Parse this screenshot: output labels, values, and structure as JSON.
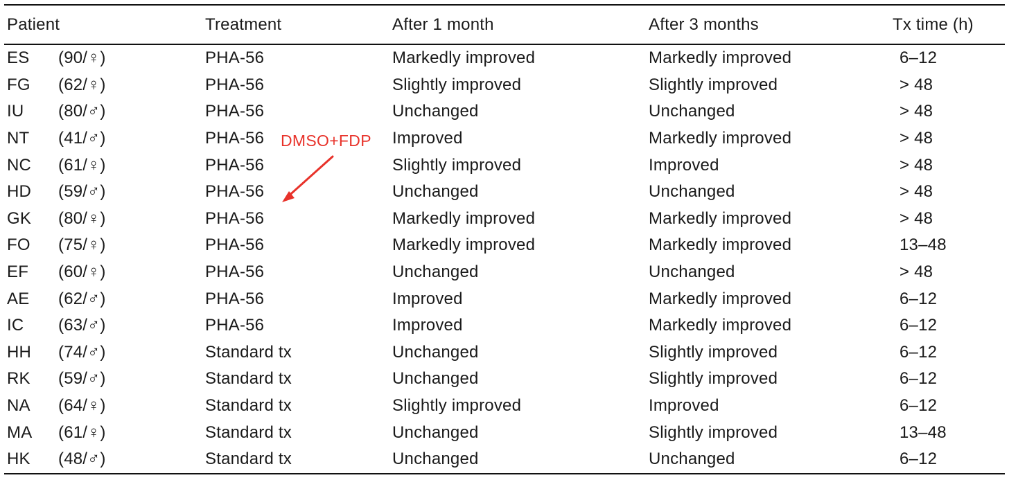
{
  "table": {
    "headers": {
      "patient": "Patient",
      "treatment": "Treatment",
      "after_1_month": "After 1 month",
      "after_3_months": "After 3 months",
      "tx_time": "Tx time (h)"
    },
    "rows": [
      {
        "id": "ES",
        "info": "(90/♀)",
        "treatment": "PHA-56",
        "m1": "Markedly improved",
        "m3": "Markedly improved",
        "tx": "6–12"
      },
      {
        "id": "FG",
        "info": "(62/♀)",
        "treatment": "PHA-56",
        "m1": "Slightly improved",
        "m3": "Slightly improved",
        "tx": "> 48"
      },
      {
        "id": "IU",
        "info": "(80/♂)",
        "treatment": "PHA-56",
        "m1": "Unchanged",
        "m3": "Unchanged",
        "tx": "> 48"
      },
      {
        "id": "NT",
        "info": "(41/♂)",
        "treatment": "PHA-56",
        "m1": "Improved",
        "m3": "Markedly improved",
        "tx": "> 48"
      },
      {
        "id": "NC",
        "info": "(61/♀)",
        "treatment": "PHA-56",
        "m1": "Slightly improved",
        "m3": "Improved",
        "tx": "> 48"
      },
      {
        "id": "HD",
        "info": "(59/♂)",
        "treatment": "PHA-56",
        "m1": "Unchanged",
        "m3": "Unchanged",
        "tx": "> 48"
      },
      {
        "id": "GK",
        "info": "(80/♀)",
        "treatment": "PHA-56",
        "m1": "Markedly improved",
        "m3": "Markedly improved",
        "tx": "> 48"
      },
      {
        "id": "FO",
        "info": "(75/♀)",
        "treatment": "PHA-56",
        "m1": "Markedly improved",
        "m3": "Markedly improved",
        "tx": "13–48"
      },
      {
        "id": "EF",
        "info": "(60/♀)",
        "treatment": "PHA-56",
        "m1": "Unchanged",
        "m3": "Unchanged",
        "tx": "> 48"
      },
      {
        "id": "AE",
        "info": "(62/♂)",
        "treatment": "PHA-56",
        "m1": "Improved",
        "m3": "Markedly improved",
        "tx": "6–12"
      },
      {
        "id": "IC",
        "info": "(63/♂)",
        "treatment": "PHA-56",
        "m1": "Improved",
        "m3": "Markedly improved",
        "tx": "6–12"
      },
      {
        "id": "HH",
        "info": "(74/♂)",
        "treatment": "Standard tx",
        "m1": "Unchanged",
        "m3": "Slightly improved",
        "tx": "6–12"
      },
      {
        "id": "RK",
        "info": "(59/♂)",
        "treatment": "Standard tx",
        "m1": "Unchanged",
        "m3": "Slightly improved",
        "tx": "6–12"
      },
      {
        "id": "NA",
        "info": "(64/♀)",
        "treatment": "Standard tx",
        "m1": "Slightly improved",
        "m3": "Improved",
        "tx": "6–12"
      },
      {
        "id": "MA",
        "info": "(61/♀)",
        "treatment": "Standard tx",
        "m1": "Unchanged",
        "m3": "Slightly improved",
        "tx": "13–48"
      },
      {
        "id": "HK",
        "info": "(48/♂)",
        "treatment": "Standard tx",
        "m1": "Unchanged",
        "m3": "Unchanged",
        "tx": "6–12"
      }
    ]
  },
  "annotation": {
    "text": "DMSO+FDP",
    "color": "#e8322a",
    "icon": "arrow-icon"
  }
}
